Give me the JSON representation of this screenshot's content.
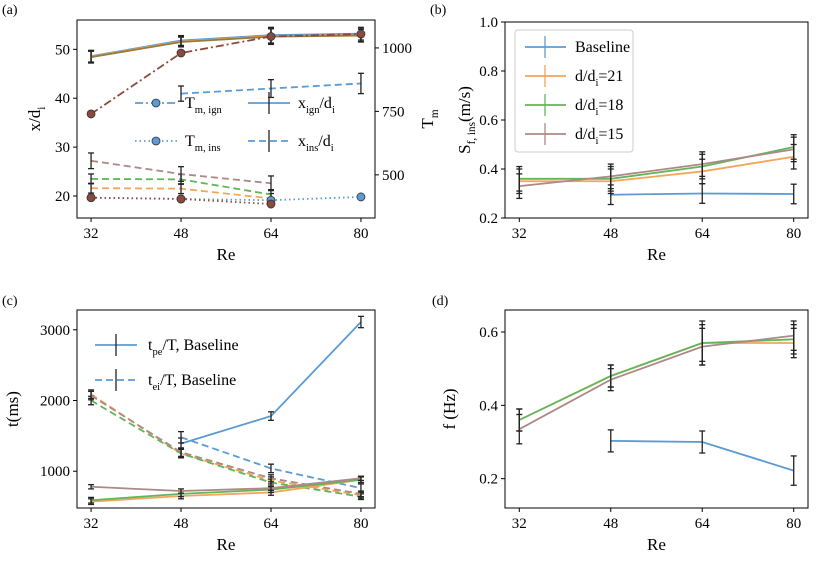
{
  "colors": {
    "blue": "#5b9bd5",
    "orange": "#f4a55a",
    "green": "#62b55a",
    "mauve": "#ad8986",
    "olive": "#9a7a3a",
    "brownDark": "#8b4a3c",
    "errorbar": "#222222"
  },
  "chart_data": [
    {
      "panel": "(a)",
      "type": "line",
      "xlabel": "Re",
      "ylabel": "x/d",
      "ylabel_sub": "i",
      "y2label": "T",
      "y2label_sub": "m",
      "x": [
        32,
        48,
        64,
        80
      ],
      "xticks": [
        "32",
        "48",
        "64",
        "80"
      ],
      "yticks": [
        "20",
        "30",
        "40",
        "50"
      ],
      "y2ticks": [
        "500",
        "750",
        "1000"
      ],
      "ylim": [
        15.5,
        56
      ],
      "y2lim": [
        330,
        1110
      ],
      "legend": [
        {
          "text": "T",
          "sub": "m, ign",
          "style": "dashdot-marker",
          "color": "#5b9bd5"
        },
        {
          "text": "x",
          "sub": "ign",
          "tail": "/d",
          "tail_sub": "i",
          "style": "solid-errorbar",
          "color": "#5b9bd5"
        },
        {
          "text": "T",
          "sub": "m, ins",
          "style": "dotted-marker",
          "color": "#5b9bd5"
        },
        {
          "text": "x",
          "sub": "ins",
          "tail": "/d",
          "tail_sub": "i",
          "style": "dashed-errorbar",
          "color": "#5b9bd5"
        }
      ],
      "series": [
        {
          "name": "x_ign/d_i Baseline",
          "axis": "left",
          "style": "solid",
          "color": "#5b9bd5",
          "values": [
            48.6,
            51.8,
            52.9,
            53.2
          ],
          "err": [
            1.2,
            1.0,
            1.6,
            1.3
          ]
        },
        {
          "name": "x_ign/d_i d/d_i=21",
          "axis": "left",
          "style": "solid",
          "color": "#f4a55a",
          "values": [
            48.5,
            51.6,
            52.7,
            52.9
          ],
          "err": [
            1.2,
            1.0,
            1.6,
            1.3
          ]
        },
        {
          "name": "x_ign/d_i d/d_i=18",
          "axis": "left",
          "style": "solid",
          "color": "#9a7a3a",
          "values": [
            48.4,
            51.5,
            52.6,
            52.8
          ],
          "err": [
            1.2,
            1.0,
            1.6,
            1.3
          ]
        },
        {
          "name": "x_ins/d_i Baseline",
          "axis": "right",
          "style": "dashed",
          "x": [
            48,
            64,
            80
          ],
          "color": "#5b9bd5",
          "values": [
            820,
            840,
            860
          ],
          "err": [
            30,
            35,
            40
          ]
        },
        {
          "name": "x_ins/d_i d/d_i=21",
          "axis": "left",
          "style": "dashed",
          "color": "#f4a55a",
          "values": [
            21.6,
            21.5,
            19.5
          ],
          "x": [
            32,
            48,
            64
          ],
          "err": [
            1.0,
            1.0,
            1.0
          ]
        },
        {
          "name": "x_ins/d_i d/d_i=18",
          "axis": "left",
          "style": "dashed",
          "color": "#62b55a",
          "values": [
            23.5,
            23.4,
            20.3
          ],
          "x": [
            32,
            48,
            64
          ],
          "err": [
            1.0,
            1.0,
            1.0
          ]
        },
        {
          "name": "x_ins/d_i d/d_i=15",
          "axis": "left",
          "style": "dashed",
          "color": "#ad8986",
          "values": [
            27.2,
            24.5,
            22.6
          ],
          "x": [
            32,
            48,
            64
          ],
          "err": [
            1.6,
            1.5,
            1.5
          ]
        },
        {
          "name": "T_m,ign d/d_i=15",
          "axis": "right",
          "style": "dashdot",
          "color": "#8b4a3c",
          "values": [
            740,
            980,
            1045,
            1055
          ],
          "markers": true
        },
        {
          "name": "T_m,ins Baseline",
          "axis": "right",
          "style": "dotted",
          "color": "#5b9bd5",
          "values": [
            410,
            405,
            400,
            413
          ],
          "markers": true
        },
        {
          "name": "T_m,ins d/d_i=15",
          "axis": "right",
          "style": "dotted",
          "color": "#8b4a3c",
          "values": [
            410,
            405,
            385
          ],
          "x": [
            32,
            48,
            64
          ],
          "markers": true
        }
      ]
    },
    {
      "panel": "(b)",
      "type": "line",
      "xlabel": "Re",
      "ylabel": "S",
      "ylabel_sub": "f, ins",
      "ylabel_tail": "(m/s)",
      "x": [
        32,
        48,
        64,
        80
      ],
      "xticks": [
        "32",
        "48",
        "64",
        "80"
      ],
      "yticks": [
        "0.2",
        "0.4",
        "0.6",
        "0.8",
        "1.0"
      ],
      "ylim": [
        0.2,
        1.0
      ],
      "legend": [
        {
          "text": "Baseline",
          "color": "#5b9bd5"
        },
        {
          "text": "d/d",
          "sub": "i",
          "tail": "=21",
          "color": "#f4a55a"
        },
        {
          "text": "d/d",
          "sub": "i",
          "tail": "=18",
          "color": "#62b55a"
        },
        {
          "text": "d/d",
          "sub": "i",
          "tail": "=15",
          "color": "#ad8986"
        }
      ],
      "series": [
        {
          "name": "Baseline",
          "color": "#5b9bd5",
          "x": [
            48,
            64,
            80
          ],
          "values": [
            0.295,
            0.3,
            0.298
          ],
          "err": [
            0.04,
            0.04,
            0.04
          ]
        },
        {
          "name": "d/d_i=21",
          "color": "#f4a55a",
          "values": [
            0.35,
            0.35,
            0.39,
            0.45
          ],
          "err": [
            0.05,
            0.05,
            0.05,
            0.05
          ]
        },
        {
          "name": "d/d_i=18",
          "color": "#62b55a",
          "values": [
            0.36,
            0.36,
            0.41,
            0.49
          ],
          "err": [
            0.05,
            0.05,
            0.05,
            0.05
          ]
        },
        {
          "name": "d/d_i=15",
          "color": "#ad8986",
          "values": [
            0.33,
            0.37,
            0.42,
            0.48
          ],
          "err": [
            0.05,
            0.05,
            0.05,
            0.05
          ]
        }
      ]
    },
    {
      "panel": "(c)",
      "type": "line",
      "xlabel": "Re",
      "ylabel": "t(ms)",
      "x": [
        32,
        48,
        64,
        80
      ],
      "xticks": [
        "32",
        "48",
        "64",
        "80"
      ],
      "yticks": [
        "1000",
        "2000",
        "3000"
      ],
      "ylim": [
        480,
        3280
      ],
      "legend": [
        {
          "text": "t",
          "sub": "pe",
          "tail": "/T, Baseline",
          "style": "solid",
          "color": "#5b9bd5"
        },
        {
          "text": "t",
          "sub": "ei",
          "tail": "/T, Baseline",
          "style": "dashed",
          "color": "#5b9bd5"
        }
      ],
      "series": [
        {
          "name": "t_pe/T Baseline",
          "style": "solid",
          "color": "#5b9bd5",
          "x": [
            48,
            64,
            80
          ],
          "values": [
            1390,
            1780,
            3110
          ],
          "err": [
            80,
            60,
            80
          ]
        },
        {
          "name": "t_ei/T Baseline",
          "style": "dashed",
          "color": "#5b9bd5",
          "x": [
            48,
            64,
            80
          ],
          "values": [
            1480,
            1040,
            760
          ],
          "err": [
            80,
            60,
            60
          ]
        },
        {
          "name": "t_ei/T d/d_i=21",
          "style": "dashed",
          "color": "#f4a55a",
          "values": [
            2090,
            1250,
            870,
            660
          ],
          "err": [
            60,
            60,
            50,
            40
          ]
        },
        {
          "name": "t_ei/T d/d_i=18",
          "style": "dashed",
          "color": "#62b55a",
          "values": [
            2000,
            1250,
            840,
            640
          ],
          "err": [
            60,
            60,
            50,
            40
          ]
        },
        {
          "name": "t_ei/T d/d_i=15",
          "style": "dashed",
          "color": "#ad8986",
          "values": [
            2070,
            1270,
            900,
            680
          ],
          "err": [
            60,
            60,
            50,
            40
          ]
        },
        {
          "name": "t_pe/T d/d_i=21",
          "style": "solid",
          "color": "#f4a55a",
          "values": [
            570,
            650,
            700,
            880
          ],
          "err": [
            40,
            40,
            40,
            40
          ]
        },
        {
          "name": "t_pe/T d/d_i=18",
          "style": "solid",
          "color": "#62b55a",
          "values": [
            590,
            680,
            740,
            880
          ],
          "err": [
            40,
            40,
            40,
            40
          ]
        },
        {
          "name": "t_pe/T d/d_i=15",
          "style": "solid",
          "color": "#ad8986",
          "values": [
            780,
            720,
            760,
            900
          ],
          "err": [
            30,
            30,
            30,
            30
          ]
        }
      ]
    },
    {
      "panel": "(d)",
      "type": "line",
      "xlabel": "Re",
      "ylabel": "f (Hz)",
      "x": [
        32,
        48,
        64,
        80
      ],
      "xticks": [
        "32",
        "48",
        "64",
        "80"
      ],
      "yticks": [
        "0.2",
        "0.4",
        "0.6"
      ],
      "ylim": [
        0.12,
        0.66
      ],
      "series": [
        {
          "name": "Baseline",
          "color": "#5b9bd5",
          "x": [
            48,
            64,
            80
          ],
          "values": [
            0.303,
            0.3,
            0.222
          ],
          "err": [
            0.03,
            0.03,
            0.04
          ]
        },
        {
          "name": "d/d_i=21",
          "color": "#f4a55a",
          "values": [
            0.36,
            0.48,
            0.57,
            0.57
          ],
          "err": [
            0.03,
            0.03,
            0.05,
            0.04
          ]
        },
        {
          "name": "d/d_i=18",
          "color": "#62b55a",
          "values": [
            0.36,
            0.48,
            0.57,
            0.58
          ],
          "err": [
            0.03,
            0.03,
            0.06,
            0.04
          ]
        },
        {
          "name": "d/d_i=15",
          "color": "#ad8986",
          "values": [
            0.335,
            0.47,
            0.56,
            0.59
          ],
          "err": [
            0.04,
            0.03,
            0.05,
            0.04
          ]
        }
      ]
    }
  ]
}
